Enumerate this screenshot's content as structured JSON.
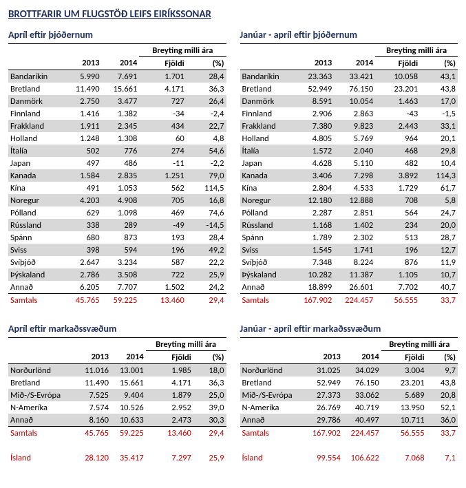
{
  "title": "BROTTFARIR UM FLUGSTÖÐ LEIFS EIRÍKSSONAR",
  "headers": {
    "breyting": "Breyting milli ára",
    "y2013": "2013",
    "y2014": "2014",
    "fjoldi": "Fjöldi",
    "pct": "(%)",
    "samtals": "Samtals",
    "island": "Ísland"
  },
  "countries": [
    "Bandaríkin",
    "Bretland",
    "Danmörk",
    "Finnland",
    "Frakkland",
    "Holland",
    "Ítalía",
    "Japan",
    "Kanada",
    "Kína",
    "Noregur",
    "Pólland",
    "Rússland",
    "Spánn",
    "Sviss",
    "Svíþjóð",
    "Þýskaland",
    "Annað"
  ],
  "regions": [
    "Norðurlönd",
    "Bretland",
    "Mið-/S-Evrópa",
    "N-Ameríka",
    "Annað"
  ],
  "tables": {
    "apr_nat": {
      "subtitle": "Apríl eftir þjóðernum",
      "rows": [
        [
          "5.990",
          "7.691",
          "1.701",
          "28,4"
        ],
        [
          "11.490",
          "15.661",
          "4.171",
          "36,3"
        ],
        [
          "2.750",
          "3.477",
          "727",
          "26,4"
        ],
        [
          "1.416",
          "1.382",
          "-34",
          "-2,4"
        ],
        [
          "1.911",
          "2.345",
          "434",
          "22,7"
        ],
        [
          "1.248",
          "1.308",
          "60",
          "4,8"
        ],
        [
          "502",
          "776",
          "274",
          "54,6"
        ],
        [
          "497",
          "486",
          "-11",
          "-2,2"
        ],
        [
          "1.584",
          "2.835",
          "1.251",
          "79,0"
        ],
        [
          "491",
          "1.053",
          "562",
          "114,5"
        ],
        [
          "4.203",
          "4.908",
          "705",
          "16,8"
        ],
        [
          "629",
          "1.098",
          "469",
          "74,6"
        ],
        [
          "338",
          "289",
          "-49",
          "-14,5"
        ],
        [
          "680",
          "873",
          "193",
          "28,4"
        ],
        [
          "398",
          "594",
          "196",
          "49,2"
        ],
        [
          "2.647",
          "3.234",
          "587",
          "22,2"
        ],
        [
          "2.786",
          "3.508",
          "722",
          "25,9"
        ],
        [
          "6.205",
          "7.707",
          "1.502",
          "24,2"
        ]
      ],
      "total": [
        "45.765",
        "59.225",
        "13.460",
        "29,4"
      ]
    },
    "ytd_nat": {
      "subtitle": "Janúar - apríl eftir þjóðernum",
      "rows": [
        [
          "23.363",
          "33.421",
          "10.058",
          "43,1"
        ],
        [
          "52.949",
          "76.150",
          "23.201",
          "43,8"
        ],
        [
          "8.591",
          "10.054",
          "1.463",
          "17,0"
        ],
        [
          "2.906",
          "2.863",
          "-43",
          "-1,5"
        ],
        [
          "7.380",
          "9.823",
          "2.443",
          "33,1"
        ],
        [
          "4.805",
          "5.769",
          "964",
          "20,1"
        ],
        [
          "1.572",
          "2.040",
          "468",
          "29,8"
        ],
        [
          "4.628",
          "5.110",
          "482",
          "10,4"
        ],
        [
          "3.406",
          "7.298",
          "3.892",
          "114,3"
        ],
        [
          "2.804",
          "4.533",
          "1.729",
          "61,7"
        ],
        [
          "12.180",
          "12.888",
          "708",
          "5,8"
        ],
        [
          "2.287",
          "2.851",
          "564",
          "24,7"
        ],
        [
          "1.168",
          "1.402",
          "234",
          "20,0"
        ],
        [
          "1.789",
          "2.302",
          "513",
          "28,7"
        ],
        [
          "1.545",
          "1.741",
          "196",
          "12,7"
        ],
        [
          "7.348",
          "8.224",
          "876",
          "11,9"
        ],
        [
          "10.282",
          "11.387",
          "1.105",
          "10,7"
        ],
        [
          "18.899",
          "26.601",
          "7.702",
          "40,7"
        ]
      ],
      "total": [
        "167.902",
        "224.457",
        "56.555",
        "33,7"
      ]
    },
    "apr_reg": {
      "subtitle": "Apríl eftir markaðssvæðum",
      "rows": [
        [
          "11.016",
          "13.001",
          "1.985",
          "18,0"
        ],
        [
          "11.490",
          "15.661",
          "4.171",
          "36,3"
        ],
        [
          "7.525",
          "9.404",
          "1.879",
          "25,0"
        ],
        [
          "7.574",
          "10.526",
          "2.952",
          "39,0"
        ],
        [
          "8.160",
          "10.633",
          "2.473",
          "30,3"
        ]
      ],
      "total": [
        "45.765",
        "59.225",
        "13.460",
        "29,4"
      ],
      "iceland": [
        "28.120",
        "35.417",
        "7.297",
        "25,9"
      ]
    },
    "ytd_reg": {
      "subtitle": "Janúar - apríl eftir markaðssvæðum",
      "rows": [
        [
          "31.025",
          "34.029",
          "3.004",
          "9,7"
        ],
        [
          "52.949",
          "76.150",
          "23.201",
          "43,8"
        ],
        [
          "27.373",
          "33.062",
          "5.689",
          "20,8"
        ],
        [
          "26.769",
          "40.719",
          "13.950",
          "52,1"
        ],
        [
          "29.786",
          "40.497",
          "10.711",
          "36,0"
        ]
      ],
      "total": [
        "167.902",
        "224.457",
        "56.555",
        "33,7"
      ],
      "iceland": [
        "99.554",
        "106.622",
        "7.068",
        "7,1"
      ]
    }
  }
}
